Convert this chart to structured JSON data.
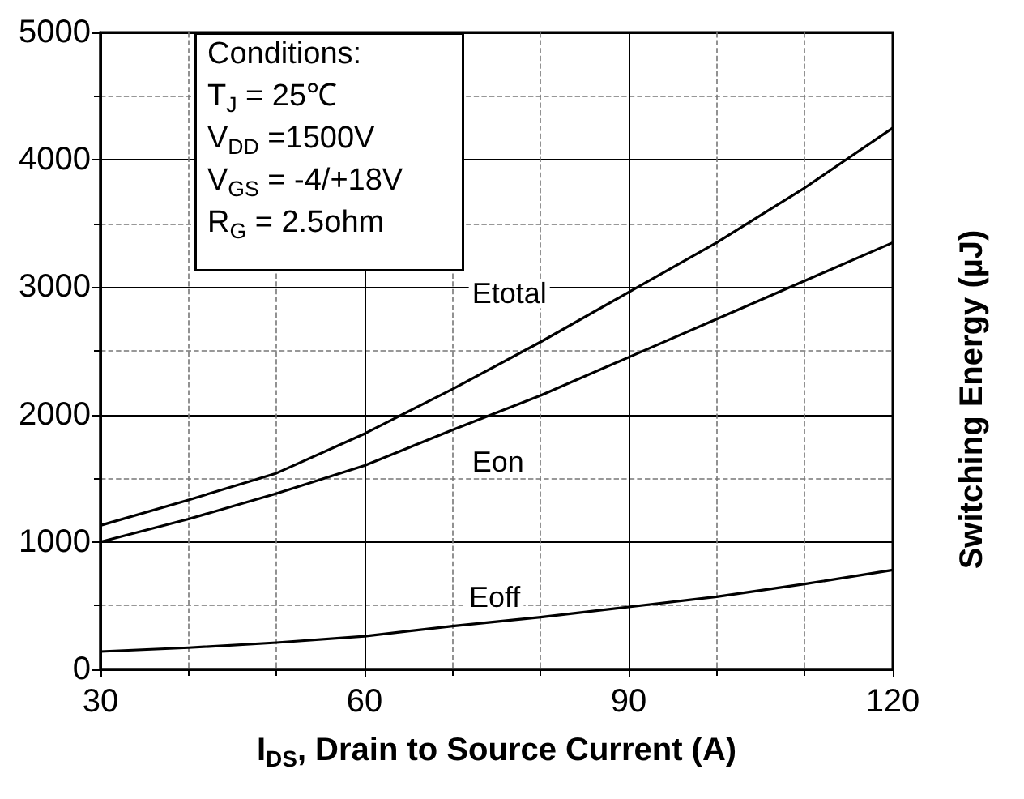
{
  "chart_data": {
    "type": "line",
    "xlabel": "I$_{DS}$, Drain to Source Current (A)",
    "ylabel": "Switching Energy (µJ)",
    "x": [
      30,
      40,
      50,
      60,
      70,
      80,
      90,
      100,
      110,
      120
    ],
    "series": [
      {
        "name": "Etotal",
        "color": "#000000",
        "values": [
          1130,
          1330,
          1540,
          1850,
          2200,
          2570,
          2960,
          3350,
          3780,
          4250
        ]
      },
      {
        "name": "Eon",
        "color": "#000000",
        "values": [
          1000,
          1180,
          1380,
          1600,
          1880,
          2150,
          2450,
          2750,
          3050,
          3350
        ]
      },
      {
        "name": "Eoff",
        "color": "#000000",
        "values": [
          140,
          170,
          210,
          260,
          340,
          410,
          490,
          570,
          670,
          780
        ]
      }
    ],
    "xlim": [
      30,
      120
    ],
    "xticks": [
      30,
      60,
      90,
      120
    ],
    "ylim": [
      0,
      5000
    ],
    "yticks": [
      0,
      1000,
      2000,
      3000,
      4000,
      5000
    ],
    "grid": true,
    "legend": false,
    "marker": "none",
    "line_style": "solid",
    "annotations": [
      "Conditions:",
      "T$_{J}$ = 25℃",
      "V$_{DD}$ =1500V",
      "V$_{GS}$ = -4/+18V",
      "R$_{G}$ = 2.5ohm"
    ]
  }
}
